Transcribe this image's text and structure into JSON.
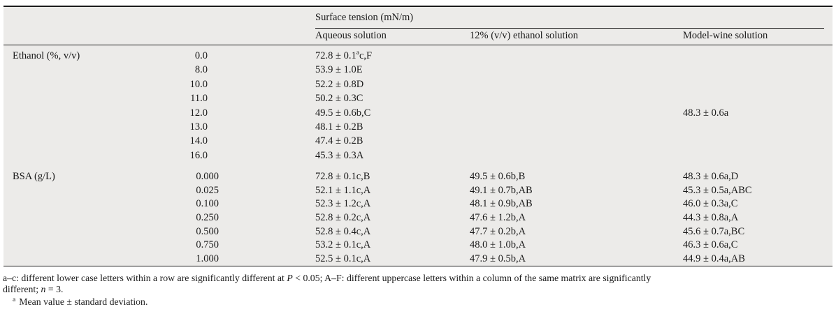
{
  "colors": {
    "table_background": "#ecebe9",
    "rule_color": "#1c1c1c",
    "text_color": "#1a1a1a",
    "page_background": "#ffffff"
  },
  "table": {
    "header": {
      "group_label": "Surface tension (mN/m)",
      "columns": [
        "Aqueous solution",
        "12% (v/v) ethanol solution",
        "Model-wine solution"
      ]
    },
    "sections": [
      {
        "label": "Ethanol (%, v/v)",
        "rows": [
          {
            "dose": "0.0",
            "aqueous": "72.8 ± 0.1{a}c,F",
            "ethanol12": "",
            "modelwine": ""
          },
          {
            "dose": "8.0",
            "aqueous": "53.9 ± 1.0E",
            "ethanol12": "",
            "modelwine": ""
          },
          {
            "dose": "10.0",
            "aqueous": "52.2 ± 0.8D",
            "ethanol12": "",
            "modelwine": ""
          },
          {
            "dose": "11.0",
            "aqueous": "50.2 ± 0.3C",
            "ethanol12": "",
            "modelwine": ""
          },
          {
            "dose": "12.0",
            "aqueous": "49.5 ± 0.6b,C",
            "ethanol12": "",
            "modelwine": "48.3 ± 0.6a"
          },
          {
            "dose": "13.0",
            "aqueous": "48.1 ± 0.2B",
            "ethanol12": "",
            "modelwine": ""
          },
          {
            "dose": "14.0",
            "aqueous": "47.4 ± 0.2B",
            "ethanol12": "",
            "modelwine": ""
          },
          {
            "dose": "16.0",
            "aqueous": "45.3 ± 0.3A",
            "ethanol12": "",
            "modelwine": ""
          }
        ]
      },
      {
        "label": "BSA (g/L)",
        "rows": [
          {
            "dose": "0.000",
            "aqueous": "72.8 ± 0.1c,B",
            "ethanol12": "49.5 ± 0.6b,B",
            "modelwine": "48.3 ± 0.6a,D"
          },
          {
            "dose": "0.025",
            "aqueous": "52.1 ± 1.1c,A",
            "ethanol12": "49.1 ± 0.7b,AB",
            "modelwine": "45.3 ± 0.5a,ABC"
          },
          {
            "dose": "0.100",
            "aqueous": "52.3 ± 1.2c,A",
            "ethanol12": "48.1 ± 0.9b,AB",
            "modelwine": "46.0 ± 0.3a,C"
          },
          {
            "dose": "0.250",
            "aqueous": "52.8 ± 0.2c,A",
            "ethanol12": "47.6 ± 1.2b,A",
            "modelwine": "44.3 ± 0.8a,A"
          },
          {
            "dose": "0.500",
            "aqueous": "52.8 ± 0.4c,A",
            "ethanol12": "47.7 ± 0.2b,A",
            "modelwine": "45.6 ± 0.7a,BC"
          },
          {
            "dose": "0.750",
            "aqueous": "53.2 ± 0.1c,A",
            "ethanol12": "48.0 ± 1.0b,A",
            "modelwine": "46.3 ± 0.6a,C"
          },
          {
            "dose": "1.000",
            "aqueous": "52.5 ± 0.1c,A",
            "ethanol12": "47.9 ± 0.5b,A",
            "modelwine": "44.9 ± 0.4a,AB"
          }
        ]
      }
    ]
  },
  "footnotes": {
    "note1": {
      "line1_segments": [
        {
          "text": "a–c: different lower case letters within a row are significantly different at "
        },
        {
          "text": "P",
          "italic": true
        },
        {
          "text": " < 0.05; A–F: different uppercase letters within a column of the same matrix are significantly"
        }
      ],
      "line2_segments": [
        {
          "text": "different; "
        },
        {
          "text": "n",
          "italic": true
        },
        {
          "text": " = 3."
        }
      ]
    },
    "note2": {
      "sup": "a",
      "text": "Mean value ± standard deviation."
    }
  }
}
